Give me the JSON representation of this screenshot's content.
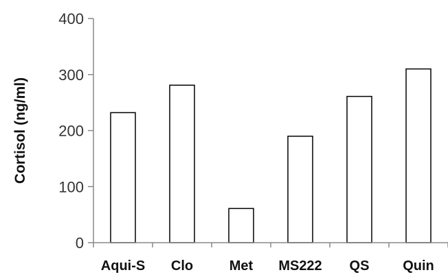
{
  "chart_data": {
    "type": "bar",
    "title": "",
    "xlabel": "",
    "ylabel": "Cortisol (ng/ml)",
    "categories": [
      "Aqui-S",
      "Clo",
      "Met",
      "MS222",
      "QS",
      "Quin"
    ],
    "values": [
      232,
      281,
      61,
      190,
      261,
      310
    ],
    "ylim": [
      0,
      400
    ],
    "yticks": [
      0,
      100,
      200,
      300,
      400
    ],
    "grid": false,
    "legend": "none",
    "colors": {
      "bar_fill": "#ffffff",
      "bar_stroke": "#000000",
      "axis": "#888888"
    }
  }
}
